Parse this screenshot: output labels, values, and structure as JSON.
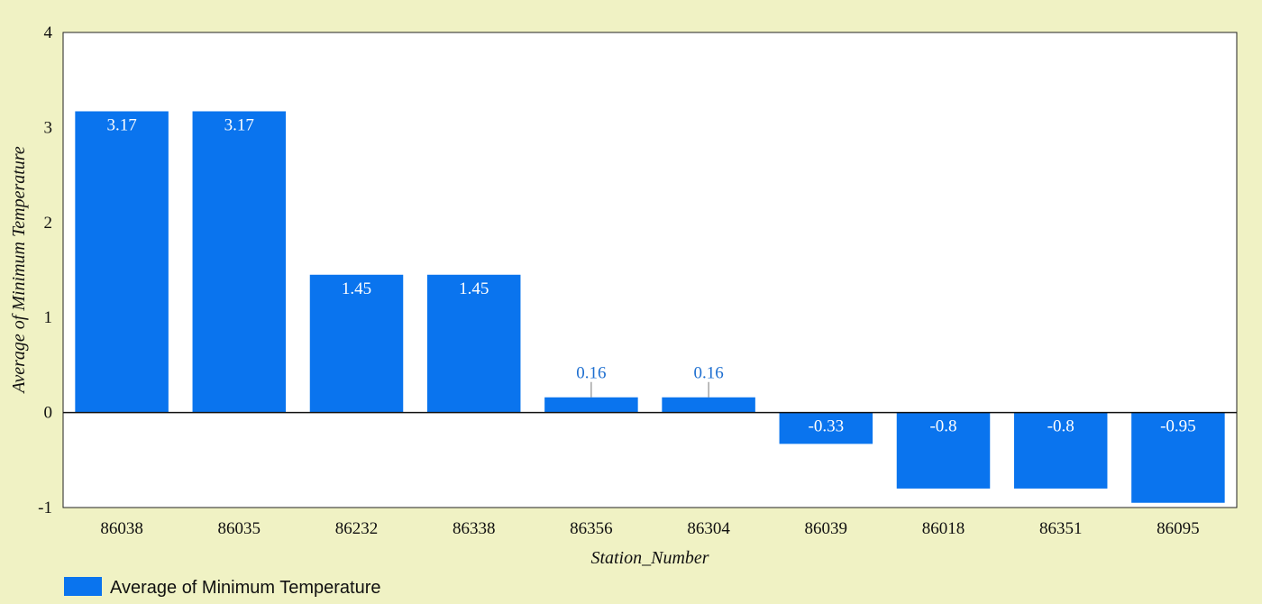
{
  "colors": {
    "background": "#f0f2c4",
    "plot_background": "#ffffff",
    "bar": "#0a74ee",
    "inside_label": "#ffffff",
    "outside_label": "#1e6fd0"
  },
  "chart_data": {
    "type": "bar",
    "categories": [
      "86038",
      "86035",
      "86232",
      "86338",
      "86356",
      "86304",
      "86039",
      "86018",
      "86351",
      "86095"
    ],
    "series": [
      {
        "name": "Average of Minimum Temperature",
        "values": [
          3.17,
          3.17,
          1.45,
          1.45,
          0.16,
          0.16,
          -0.33,
          -0.8,
          -0.8,
          -0.95
        ],
        "labels": [
          "3.17",
          "3.17",
          "1.45",
          "1.45",
          "0.16",
          "0.16",
          "-0.33",
          "-0.8",
          "-0.8",
          "-0.95"
        ]
      }
    ],
    "xlabel": "Station_Number",
    "ylabel": "Average of Minimum Temperature",
    "ylim": [
      -1,
      4
    ],
    "yticks": [
      "-1",
      "0",
      "1",
      "2",
      "3",
      "4"
    ],
    "grid": false,
    "legend": "bottom-left"
  }
}
